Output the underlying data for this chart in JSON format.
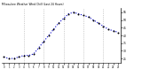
{
  "title": "Milwaukee Weather Wind Chill (Last 24 Hours)",
  "x_hours": [
    0,
    1,
    2,
    3,
    4,
    5,
    6,
    7,
    8,
    9,
    10,
    11,
    12,
    13,
    14,
    15,
    16,
    17,
    18,
    19,
    20,
    21,
    22,
    23
  ],
  "wind_chill": [
    26,
    25,
    25,
    26,
    27,
    27,
    28,
    32,
    36,
    40,
    44,
    48,
    51,
    54,
    55,
    54,
    53,
    52,
    50,
    48,
    46,
    44,
    43,
    42
  ],
  "ylim": [
    22,
    58
  ],
  "yticks": [
    25,
    30,
    35,
    40,
    45,
    50,
    55
  ],
  "ytick_labels": [
    "25",
    "30",
    "35",
    "40",
    "45",
    "50",
    "55"
  ],
  "line_color": "#0000cc",
  "dot_color": "#000000",
  "bg_color": "#ffffff",
  "title_color": "#000000",
  "grid_color": "#aaaaaa",
  "grid_hours": [
    4,
    8,
    12,
    16,
    20
  ],
  "x_tick_labels": [
    "0",
    "1",
    "2",
    "3",
    "4",
    "5",
    "6",
    "7",
    "8",
    "9",
    "10",
    "11",
    "12",
    "13",
    "14",
    "15",
    "16",
    "17",
    "18",
    "19",
    "20",
    "21",
    "22",
    "23"
  ]
}
